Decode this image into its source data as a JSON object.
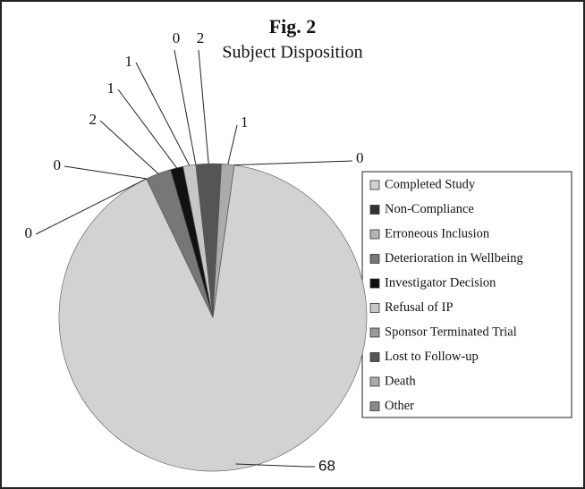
{
  "chart_data": {
    "type": "pie",
    "title": "Fig. 2",
    "subtitle": "Subject Disposition",
    "categories": [
      "Completed Study",
      "Non-Compliance",
      "Erroneous Inclusion",
      "Deterioration in Wellbeing",
      "Investigator Decision",
      "Refusal of IP",
      "Sponsor Terminated Trial",
      "Lost to Follow-up",
      "Death",
      "Other"
    ],
    "values": [
      68,
      0,
      0,
      2,
      1,
      1,
      0,
      2,
      1,
      0
    ],
    "colors": [
      "#d2d2d2",
      "#333333",
      "#b4b4b4",
      "#777777",
      "#111111",
      "#c6c6c6",
      "#9a9a9a",
      "#555555",
      "#ababab",
      "#8a8a8a"
    ],
    "legend": "right"
  }
}
